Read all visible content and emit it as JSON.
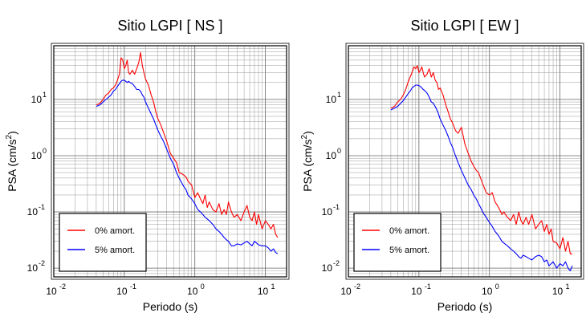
{
  "chart_data": [
    {
      "type": "line",
      "title": "Sitio LGPI [ NS ]",
      "xlabel": "Periodo (s)",
      "ylabel_base": "PSA (cm/s",
      "ylabel_sup": "2",
      "ylabel_close": ")",
      "xscale": "log",
      "yscale": "log",
      "xlim": [
        0.01,
        20
      ],
      "ylim": [
        0.007,
        90
      ],
      "grid": true,
      "legend_position": "bottom-left",
      "x_ticks": [
        {
          "base": "10",
          "exp": "-2",
          "value": 0.01
        },
        {
          "base": "10",
          "exp": "-1",
          "value": 0.1
        },
        {
          "base": "10",
          "exp": "0",
          "value": 1
        },
        {
          "base": "10",
          "exp": "1",
          "value": 10
        }
      ],
      "y_ticks": [
        {
          "base": "10",
          "exp": "-2",
          "value": 0.01
        },
        {
          "base": "10",
          "exp": "-1",
          "value": 0.1
        },
        {
          "base": "10",
          "exp": "0",
          "value": 1
        },
        {
          "base": "10",
          "exp": "1",
          "value": 10
        }
      ],
      "series": [
        {
          "name": "0% amort.",
          "color": "#ff0000",
          "x": [
            0.04,
            0.045,
            0.05,
            0.055,
            0.06,
            0.065,
            0.07,
            0.075,
            0.08,
            0.085,
            0.09,
            0.095,
            0.1,
            0.105,
            0.11,
            0.115,
            0.12,
            0.13,
            0.14,
            0.15,
            0.16,
            0.17,
            0.18,
            0.19,
            0.2,
            0.22,
            0.24,
            0.26,
            0.28,
            0.3,
            0.33,
            0.36,
            0.4,
            0.45,
            0.5,
            0.55,
            0.6,
            0.65,
            0.7,
            0.75,
            0.8,
            0.9,
            1.0,
            1.1,
            1.2,
            1.3,
            1.4,
            1.5,
            1.6,
            1.8,
            2.0,
            2.2,
            2.4,
            2.6,
            2.8,
            3.0,
            3.3,
            3.6,
            4.0,
            4.5,
            5.0,
            5.5,
            6.0,
            6.5,
            7.0,
            7.5,
            8.0,
            9.0,
            10.0,
            11.0,
            12.0,
            13.0,
            14.0,
            15.0
          ],
          "y": [
            8,
            8.5,
            10,
            12,
            13,
            15,
            16,
            18,
            22,
            28,
            55,
            50,
            35,
            40,
            50,
            30,
            28,
            33,
            28,
            35,
            45,
            68,
            40,
            30,
            23,
            18,
            12,
            9,
            6,
            4.5,
            3.5,
            2.6,
            1.8,
            1.1,
            0.9,
            0.75,
            0.5,
            0.48,
            0.45,
            0.42,
            0.35,
            0.3,
            0.18,
            0.22,
            0.17,
            0.14,
            0.2,
            0.12,
            0.15,
            0.11,
            0.1,
            0.14,
            0.09,
            0.11,
            0.09,
            0.15,
            0.1,
            0.08,
            0.09,
            0.07,
            0.1,
            0.13,
            0.08,
            0.07,
            0.1,
            0.06,
            0.09,
            0.05,
            0.07,
            0.06,
            0.05,
            0.06,
            0.04,
            0.035
          ]
        },
        {
          "name": "5% amort.",
          "color": "#0000ff",
          "x": [
            0.04,
            0.045,
            0.05,
            0.055,
            0.06,
            0.065,
            0.07,
            0.075,
            0.08,
            0.085,
            0.09,
            0.095,
            0.1,
            0.105,
            0.11,
            0.115,
            0.12,
            0.13,
            0.14,
            0.15,
            0.16,
            0.17,
            0.18,
            0.19,
            0.2,
            0.22,
            0.24,
            0.26,
            0.28,
            0.3,
            0.33,
            0.36,
            0.4,
            0.45,
            0.5,
            0.55,
            0.6,
            0.65,
            0.7,
            0.75,
            0.8,
            0.9,
            1.0,
            1.1,
            1.2,
            1.3,
            1.4,
            1.5,
            1.6,
            1.8,
            2.0,
            2.2,
            2.4,
            2.6,
            2.8,
            3.0,
            3.3,
            3.6,
            4.0,
            4.5,
            5.0,
            5.5,
            6.0,
            6.5,
            7.0,
            7.5,
            8.0,
            9.0,
            10.0,
            11.0,
            12.0,
            13.0,
            14.0,
            15.0
          ],
          "y": [
            7.5,
            8,
            9,
            10,
            11,
            12,
            14,
            15,
            17,
            19,
            21,
            22,
            22,
            21,
            20,
            21,
            20,
            19,
            17,
            15,
            15,
            14,
            12,
            11,
            9,
            7,
            5.5,
            4.5,
            3.5,
            2.8,
            2.2,
            1.8,
            1.3,
            0.9,
            0.7,
            0.5,
            0.4,
            0.33,
            0.28,
            0.25,
            0.2,
            0.17,
            0.14,
            0.11,
            0.1,
            0.09,
            0.08,
            0.075,
            0.07,
            0.06,
            0.05,
            0.045,
            0.04,
            0.035,
            0.032,
            0.03,
            0.025,
            0.025,
            0.027,
            0.026,
            0.028,
            0.03,
            0.027,
            0.025,
            0.03,
            0.028,
            0.026,
            0.025,
            0.025,
            0.023,
            0.02,
            0.022,
            0.019,
            0.018
          ]
        }
      ]
    },
    {
      "type": "line",
      "title": "Sitio LGPI [ EW ]",
      "xlabel": "Periodo (s)",
      "ylabel_base": "PSA (cm/s",
      "ylabel_sup": "2",
      "ylabel_close": ")",
      "xscale": "log",
      "yscale": "log",
      "xlim": [
        0.01,
        20
      ],
      "ylim": [
        0.007,
        90
      ],
      "grid": true,
      "legend_position": "bottom-left",
      "x_ticks": [
        {
          "base": "10",
          "exp": "-2",
          "value": 0.01
        },
        {
          "base": "10",
          "exp": "-1",
          "value": 0.1
        },
        {
          "base": "10",
          "exp": "0",
          "value": 1
        },
        {
          "base": "10",
          "exp": "1",
          "value": 10
        }
      ],
      "y_ticks": [
        {
          "base": "10",
          "exp": "-2",
          "value": 0.01
        },
        {
          "base": "10",
          "exp": "-1",
          "value": 0.1
        },
        {
          "base": "10",
          "exp": "0",
          "value": 1
        },
        {
          "base": "10",
          "exp": "1",
          "value": 10
        }
      ],
      "series": [
        {
          "name": "0% amort.",
          "color": "#ff0000",
          "x": [
            0.04,
            0.045,
            0.05,
            0.055,
            0.06,
            0.065,
            0.07,
            0.075,
            0.08,
            0.085,
            0.09,
            0.095,
            0.1,
            0.105,
            0.11,
            0.115,
            0.12,
            0.13,
            0.14,
            0.15,
            0.16,
            0.17,
            0.18,
            0.19,
            0.2,
            0.22,
            0.24,
            0.26,
            0.28,
            0.3,
            0.33,
            0.36,
            0.4,
            0.45,
            0.5,
            0.55,
            0.6,
            0.65,
            0.7,
            0.75,
            0.8,
            0.9,
            1.0,
            1.1,
            1.2,
            1.3,
            1.4,
            1.5,
            1.6,
            1.8,
            2.0,
            2.2,
            2.4,
            2.6,
            2.8,
            3.0,
            3.3,
            3.6,
            4.0,
            4.5,
            5.0,
            5.5,
            6.0,
            6.5,
            7.0,
            7.5,
            8.0,
            9.0,
            10.0,
            11.0,
            12.0,
            13.0,
            14.0,
            15.0
          ],
          "y": [
            7,
            7.5,
            9,
            10,
            12,
            15,
            20,
            25,
            30,
            38,
            35,
            40,
            30,
            33,
            38,
            30,
            25,
            28,
            35,
            25,
            30,
            22,
            20,
            15,
            16,
            12,
            8,
            6,
            4.5,
            3.8,
            2.8,
            2.5,
            3.2,
            1.6,
            1.1,
            0.8,
            0.65,
            0.55,
            0.5,
            0.4,
            0.32,
            0.22,
            0.2,
            0.22,
            0.15,
            0.13,
            0.11,
            0.09,
            0.1,
            0.08,
            0.07,
            0.09,
            0.06,
            0.1,
            0.07,
            0.06,
            0.08,
            0.06,
            0.09,
            0.05,
            0.06,
            0.07,
            0.045,
            0.06,
            0.04,
            0.05,
            0.03,
            0.028,
            0.022,
            0.035,
            0.02,
            0.03,
            0.018,
            0.018
          ]
        },
        {
          "name": "5% amort.",
          "color": "#0000ff",
          "x": [
            0.04,
            0.045,
            0.05,
            0.055,
            0.06,
            0.065,
            0.07,
            0.075,
            0.08,
            0.085,
            0.09,
            0.095,
            0.1,
            0.105,
            0.11,
            0.115,
            0.12,
            0.13,
            0.14,
            0.15,
            0.16,
            0.17,
            0.18,
            0.19,
            0.2,
            0.22,
            0.24,
            0.26,
            0.28,
            0.3,
            0.33,
            0.36,
            0.4,
            0.45,
            0.5,
            0.55,
            0.6,
            0.65,
            0.7,
            0.75,
            0.8,
            0.9,
            1.0,
            1.1,
            1.2,
            1.3,
            1.4,
            1.5,
            1.6,
            1.8,
            2.0,
            2.2,
            2.4,
            2.6,
            2.8,
            3.0,
            3.3,
            3.6,
            4.0,
            4.5,
            5.0,
            5.5,
            6.0,
            6.5,
            7.0,
            7.5,
            8.0,
            9.0,
            10.0,
            11.0,
            12.0,
            13.0,
            14.0,
            15.0
          ],
          "y": [
            6.5,
            7,
            7.5,
            8.5,
            9.5,
            11,
            12.5,
            14,
            16,
            17,
            18,
            18,
            17.5,
            17,
            16,
            15,
            14.5,
            13,
            11,
            9,
            8.5,
            7.5,
            6.5,
            5.5,
            4.5,
            3.5,
            2.8,
            2.2,
            1.7,
            1.4,
            1.0,
            0.75,
            0.55,
            0.4,
            0.3,
            0.25,
            0.2,
            0.17,
            0.14,
            0.12,
            0.1,
            0.08,
            0.065,
            0.055,
            0.045,
            0.04,
            0.035,
            0.03,
            0.028,
            0.025,
            0.022,
            0.02,
            0.018,
            0.016,
            0.015,
            0.017,
            0.016,
            0.015,
            0.014,
            0.016,
            0.017,
            0.016,
            0.013,
            0.014,
            0.011,
            0.012,
            0.013,
            0.01,
            0.012,
            0.011,
            0.013,
            0.01,
            0.009,
            0.011
          ]
        }
      ]
    }
  ]
}
